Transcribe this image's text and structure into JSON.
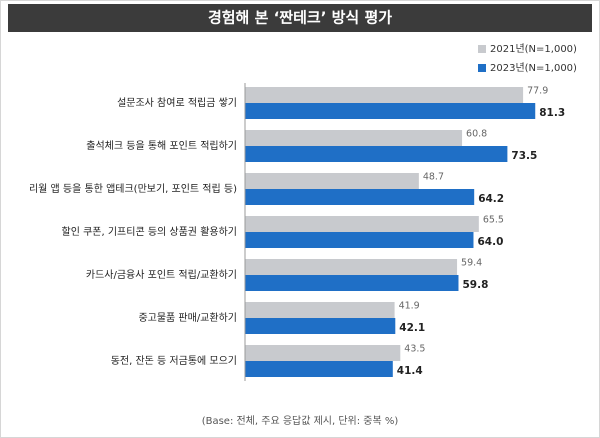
{
  "chart_data": {
    "type": "hbar",
    "title": "경험해 본 ‘짠테크’ 방식 평가",
    "categories": [
      "설문조사 참여로 적립금 쌓기",
      "출석체크 등을 통해 포인트 적립하기",
      "리월 앱 등을 통한 앱테크(만보기, 포인트 적립 등)",
      "할인 쿠폰, 기프티콘 등의 상품권 활용하기",
      "카드사/금융사 포인트 적립/교환하기",
      "중고물품 판매/교환하기",
      "동전, 잔돈 등 저금통에 모으기"
    ],
    "series": [
      {
        "name": "2021년(N=1,000)",
        "color": "#c8cace",
        "values": [
          77.9,
          60.8,
          48.7,
          65.5,
          59.4,
          41.9,
          43.5
        ]
      },
      {
        "name": "2023년(N=1,000)",
        "color": "#1f6fc6",
        "values": [
          81.3,
          73.5,
          64.2,
          64,
          59.8,
          42.1,
          41.4
        ],
        "value_labels": [
          "81.3",
          "73.5",
          "64.2",
          "64.0",
          "59.8",
          "42.1",
          "41.4"
        ]
      }
    ],
    "xlim": [
      0,
      100
    ],
    "footnote": "(Base: 전체, 주요 응답값 제시, 단위: 중복 %)"
  }
}
